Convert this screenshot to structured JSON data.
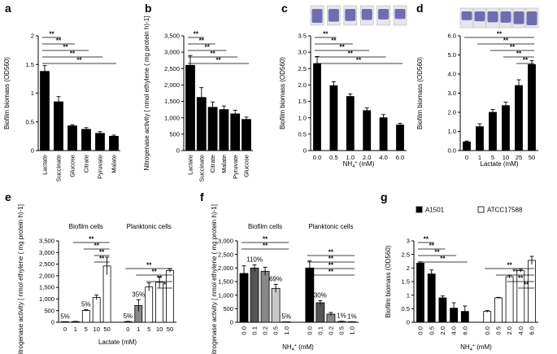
{
  "colors": {
    "black": "#000000",
    "dark_gray": "#555555",
    "mid_gray": "#888888",
    "light_gray": "#c8c8c8",
    "white": "#ffffff",
    "photo_purple": "#5b56a8"
  },
  "chart_data": [
    {
      "panel": "a",
      "type": "bar",
      "ylabel": "Biofilm biomass (OD560)",
      "xlabel": "",
      "ylim": [
        0,
        2.0
      ],
      "yticks": [
        "0",
        "0.5",
        "1",
        "1.5",
        "2"
      ],
      "categories": [
        "Lactate",
        "Succinate",
        "Glucose",
        "Citrate",
        "Pyruvate",
        "Malate"
      ],
      "values": [
        1.38,
        0.85,
        0.43,
        0.37,
        0.3,
        0.25
      ],
      "errors": [
        0.1,
        0.09,
        0.02,
        0.03,
        0.03,
        0.02
      ],
      "fills": [
        "black",
        "black",
        "black",
        "black",
        "black",
        "black"
      ],
      "significance": [
        {
          "from": 0,
          "to": 1,
          "label": "**"
        },
        {
          "from": 0,
          "to": 2,
          "label": "**"
        },
        {
          "from": 0,
          "to": 3,
          "label": "**"
        },
        {
          "from": 0,
          "to": 4,
          "label": "**"
        },
        {
          "from": 0,
          "to": 5,
          "label": "**"
        }
      ]
    },
    {
      "panel": "b",
      "type": "bar",
      "ylabel": "Nitrogenase activity [ nmol ethylene ( mg protein h)-1]",
      "xlabel": "",
      "ylim": [
        0,
        3500
      ],
      "yticks": [
        "0",
        "500",
        "1,000",
        "1,500",
        "2,000",
        "2,500",
        "3,000",
        "3,500"
      ],
      "categories": [
        "Lactate",
        "Succinate",
        "Citrate",
        "Malate",
        "Pyruvate",
        "Glucose"
      ],
      "values": [
        2600,
        1620,
        1320,
        1250,
        1120,
        950
      ],
      "errors": [
        300,
        300,
        160,
        110,
        110,
        70
      ],
      "fills": [
        "black",
        "black",
        "black",
        "black",
        "black",
        "black"
      ],
      "significance": [
        {
          "from": 0,
          "to": 1,
          "label": "**"
        },
        {
          "from": 0,
          "to": 2,
          "label": "**"
        },
        {
          "from": 0,
          "to": 3,
          "label": "**"
        },
        {
          "from": 0,
          "to": 4,
          "label": "**"
        },
        {
          "from": 0,
          "to": 5,
          "label": "**"
        }
      ]
    },
    {
      "panel": "c",
      "type": "bar",
      "ylabel": "Biofilm biomass (OD560)",
      "xlabel": "NH4+ (mM)",
      "ylim": [
        0,
        3.5
      ],
      "yticks": [
        "0",
        "0.5",
        "1.0",
        "1.5",
        "2.0",
        "2.5",
        "3.0",
        "3.5"
      ],
      "categories": [
        "0.0",
        "0.5",
        "1.0",
        "2.0",
        "4.0",
        "6.0"
      ],
      "values": [
        2.65,
        1.98,
        1.65,
        1.22,
        1.0,
        0.78
      ],
      "errors": [
        0.22,
        0.12,
        0.08,
        0.08,
        0.1,
        0.05
      ],
      "fills": [
        "black",
        "black",
        "black",
        "black",
        "black",
        "black"
      ],
      "significance": [
        {
          "from": 0,
          "to": 1,
          "label": "**"
        },
        {
          "from": 0,
          "to": 2,
          "label": "**"
        },
        {
          "from": 0,
          "to": 3,
          "label": "**"
        },
        {
          "from": 0,
          "to": 4,
          "label": "**"
        },
        {
          "from": 0,
          "to": 5,
          "label": "**"
        }
      ]
    },
    {
      "panel": "d",
      "type": "bar",
      "ylabel": "Biofilm biomass (OD560)",
      "xlabel": "Lactate (mM)",
      "ylim": [
        0,
        6.0
      ],
      "yticks": [
        "0.0",
        "1.0",
        "2.0",
        "3.0",
        "4.0",
        "5.0",
        "6.0"
      ],
      "categories": [
        "0",
        "1",
        "5",
        "10",
        "25",
        "50"
      ],
      "values": [
        0.45,
        1.25,
        2.0,
        2.35,
        3.4,
        4.5
      ],
      "errors": [
        0.05,
        0.15,
        0.15,
        0.18,
        0.3,
        0.2
      ],
      "fills": [
        "black",
        "black",
        "black",
        "black",
        "black",
        "black"
      ],
      "significance": [
        {
          "from": 0,
          "to": 5,
          "label": "**"
        },
        {
          "from": 1,
          "to": 5,
          "label": "**"
        },
        {
          "from": 2,
          "to": 5,
          "label": "**"
        },
        {
          "from": 3,
          "to": 5,
          "label": "**"
        },
        {
          "from": 4,
          "to": 5,
          "label": "**"
        }
      ]
    },
    {
      "panel": "e",
      "type": "bar",
      "ylabel": "Nitrogenase activity [ nmol ethylene ( mg protein h)-1]",
      "xlabel": "Lactate (mM)",
      "ylim": [
        0,
        3500
      ],
      "yticks": [
        "0",
        "500",
        "1,000",
        "1,500",
        "2,000",
        "2,500",
        "3,000",
        "3,500"
      ],
      "groups": [
        "Biofilm cells",
        "Planktonic cells"
      ],
      "categories": [
        "0",
        "1",
        "5",
        "10",
        "50",
        "0",
        "1",
        "5",
        "10",
        "50"
      ],
      "values": [
        20,
        30,
        510,
        1070,
        2420,
        30,
        720,
        1520,
        1720,
        2220
      ],
      "errors": [
        5,
        10,
        30,
        100,
        380,
        10,
        250,
        170,
        230,
        70
      ],
      "fills": [
        "white",
        "white",
        "white",
        "white",
        "white",
        "mid_gray",
        "mid_gray",
        "white",
        "white",
        "white"
      ],
      "annotations": [
        {
          "bar": 0,
          "label": "5%"
        },
        {
          "bar": 2,
          "label": "5%"
        },
        {
          "bar": 5,
          "label": "5%"
        },
        {
          "bar": 6,
          "label": "35%"
        }
      ],
      "significance": [
        {
          "from": 1,
          "to": 4,
          "label": "**"
        },
        {
          "from": 2,
          "to": 4,
          "label": "**"
        },
        {
          "from": 3,
          "to": 4,
          "label": "**"
        },
        {
          "from": 3,
          "to": 4,
          "label": "**"
        },
        {
          "from": 5,
          "to": 9,
          "label": "**"
        },
        {
          "from": 6,
          "to": 9,
          "label": "**"
        },
        {
          "from": 7,
          "to": 9,
          "label": "**"
        },
        {
          "from": 8,
          "to": 9,
          "label": "*"
        }
      ]
    },
    {
      "panel": "f",
      "type": "bar",
      "ylabel": "Nitrogenase activity [ nmol ethylene ( mg protein h)-1]",
      "xlabel": "NH4+ (mM)",
      "ylim": [
        0,
        3000
      ],
      "yticks": [
        "0",
        "500",
        "1,000",
        "1,500",
        "2,000",
        "2,500",
        "3,000"
      ],
      "groups": [
        "Biofilm cells",
        "Planktonic cells"
      ],
      "categories": [
        "0.0",
        "0.1",
        "0.2",
        "0.5",
        "1.0",
        "0.0",
        "0.1",
        "0.2",
        "0.5",
        "1.0"
      ],
      "values": [
        1800,
        2000,
        1880,
        1250,
        10,
        2000,
        720,
        300,
        30,
        15
      ],
      "errors": [
        280,
        120,
        150,
        150,
        5,
        260,
        80,
        60,
        10,
        5
      ],
      "fills": [
        "black",
        "dark_gray",
        "mid_gray",
        "light_gray",
        "white",
        "black",
        "dark_gray",
        "mid_gray",
        "light_gray",
        "white"
      ],
      "annotations": [
        {
          "bar": 1,
          "label": "110%"
        },
        {
          "bar": 3,
          "label": "69%"
        },
        {
          "bar": 4,
          "label": "5%"
        },
        {
          "bar": 6,
          "label": "30%"
        },
        {
          "bar": 8,
          "label": "1%"
        },
        {
          "bar": 9,
          "label": "1%"
        }
      ],
      "significance": [
        {
          "from": 0,
          "to": 4,
          "label": "**"
        },
        {
          "from": 0,
          "to": 4,
          "label": "**"
        },
        {
          "from": 5,
          "to": 9,
          "label": "**"
        },
        {
          "from": 5,
          "to": 9,
          "label": "**"
        },
        {
          "from": 5,
          "to": 9,
          "label": "**"
        },
        {
          "from": 5,
          "to": 9,
          "label": "**"
        }
      ]
    },
    {
      "panel": "g",
      "type": "bar",
      "ylabel": "Biofilm biomass (OD560)",
      "xlabel": "NH4+ (mM)",
      "ylim": [
        0,
        3.0
      ],
      "yticks": [
        "0",
        "0.5",
        "1",
        "1.5",
        "2",
        "2.5",
        "3"
      ],
      "legend": [
        {
          "label": "A1501",
          "fill": "black"
        },
        {
          "label": "ATCC17588",
          "fill": "white"
        }
      ],
      "categories": [
        "0.0",
        "0.5",
        "2.0",
        "4.0",
        "6.0",
        "0.0",
        "0.5",
        "2.0",
        "4.0",
        "6.0"
      ],
      "series_names": [
        "A1501",
        "A1501",
        "A1501",
        "A1501",
        "A1501",
        "ATCC17588",
        "ATCC17588",
        "ATCC17588",
        "ATCC17588",
        "ATCC17588"
      ],
      "values": [
        2.18,
        1.78,
        0.9,
        0.52,
        0.4,
        0.4,
        0.9,
        1.68,
        1.9,
        2.28
      ],
      "errors": [
        0.05,
        0.15,
        0.07,
        0.2,
        0.2,
        0.03,
        0.02,
        0.05,
        0.05,
        0.15
      ],
      "fills": [
        "black",
        "black",
        "black",
        "black",
        "black",
        "white",
        "white",
        "white",
        "white",
        "white"
      ],
      "significance": [
        {
          "from": 0,
          "to": 1,
          "label": "**"
        },
        {
          "from": 0,
          "to": 2,
          "label": "**"
        },
        {
          "from": 0,
          "to": 3,
          "label": "**"
        },
        {
          "from": 0,
          "to": 4,
          "label": "**"
        },
        {
          "from": 5,
          "to": 9,
          "label": "**"
        },
        {
          "from": 6,
          "to": 9,
          "label": "**"
        },
        {
          "from": 7,
          "to": 9,
          "label": "**"
        },
        {
          "from": 8,
          "to": 9,
          "label": "**"
        }
      ]
    }
  ]
}
